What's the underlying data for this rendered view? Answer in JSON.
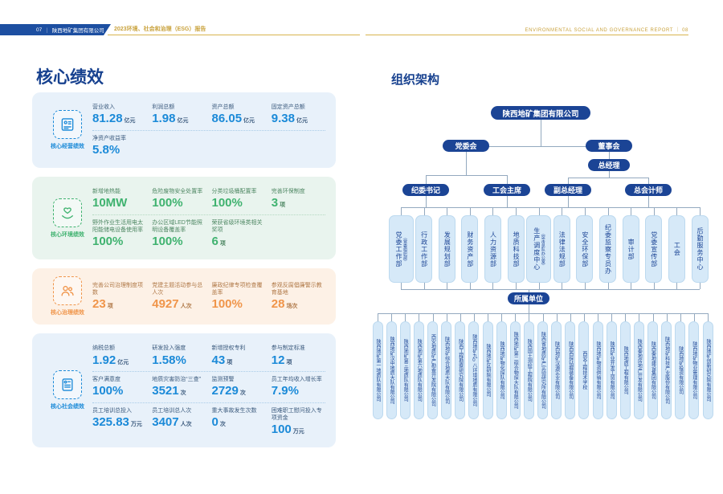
{
  "header": {
    "page_left": "07",
    "divider": "｜",
    "company": "陕西地矿集团有限公司",
    "report_title_cn": "2023环境、社会和治理（ESG）报告",
    "report_title_en": "ENVIRONMENTAL SOCIAL AND GOVERNANCE REPORT",
    "page_right": "08",
    "bar_color": "#1d4fa1",
    "gold_color": "#c9a23c"
  },
  "kpi": {
    "title": "核心绩效",
    "cards": [
      {
        "name": "core-business",
        "label": "核心经营绩效",
        "icon": "id-card-icon",
        "theme": {
          "bg": "#e8f1fa",
          "accent": "#1b8ad8",
          "label": "#3c5b7e",
          "divider": "#a9cce8"
        },
        "rows": [
          [
            {
              "label": "营业收入",
              "value": "81.28",
              "unit": "亿元"
            },
            {
              "label": "利润总额",
              "value": "1.98",
              "unit": "亿元"
            },
            {
              "label": "资产总额",
              "value": "86.05",
              "unit": "亿元"
            },
            {
              "label": "固定资产总额",
              "value": "9.38",
              "unit": "亿元"
            }
          ],
          [
            {
              "label": "净资产收益率",
              "value": "5.8%",
              "unit": ""
            }
          ]
        ]
      },
      {
        "name": "core-environment",
        "label": "核心环境绩效",
        "icon": "hand-holding-heart-icon",
        "theme": {
          "bg": "#e9f4ee",
          "accent": "#3fb26f",
          "label": "#4e8763",
          "divider": "#b4d9c2"
        },
        "rows": [
          [
            {
              "label": "新增地热能",
              "value": "10MW",
              "unit": ""
            },
            {
              "label": "危险废物安全处置率",
              "value": "100%",
              "unit": ""
            },
            {
              "label": "分类垃圾桶配置率",
              "value": "100%",
              "unit": ""
            },
            {
              "label": "完善环保制度",
              "value": "3",
              "unit": "项"
            }
          ],
          [
            {
              "label": "野外作业生活用电太阳能储电设备使用率",
              "value": "100%",
              "unit": ""
            },
            {
              "label": "办公区域LED节能照明设备覆盖率",
              "value": "100%",
              "unit": ""
            },
            {
              "label": "荣获省级环境类相关奖项",
              "value": "6",
              "unit": "项"
            }
          ]
        ]
      },
      {
        "name": "core-governance",
        "label": "核心治理绩效",
        "icon": "people-icon",
        "theme": {
          "bg": "#fdf1e6",
          "accent": "#f0954a",
          "label": "#b07948",
          "divider": "#f0d3b6"
        },
        "rows": [
          [
            {
              "label": "完善公司治理制度项数",
              "value": "23",
              "unit": "项"
            },
            {
              "label": "党建主题活动参与总人次",
              "value": "4927",
              "unit": "人次"
            },
            {
              "label": "廉政纪律专项检查覆盖率",
              "value": "100%",
              "unit": ""
            },
            {
              "label": "参观反腐倡廉警示教育基地",
              "value": "28",
              "unit": "场次"
            }
          ]
        ]
      },
      {
        "name": "core-social",
        "label": "核心社会绩效",
        "icon": "document-icon",
        "theme": {
          "bg": "#e8f1fa",
          "accent": "#1b8ad8",
          "label": "#3c5b7e",
          "divider": "#a9cce8"
        },
        "rows": [
          [
            {
              "label": "纳税总额",
              "value": "1.92",
              "unit": "亿元"
            },
            {
              "label": "研发投入强度",
              "value": "1.58%",
              "unit": ""
            },
            {
              "label": "新增授权专利",
              "value": "43",
              "unit": "项"
            },
            {
              "label": "参与制定标准",
              "value": "12",
              "unit": "项"
            }
          ],
          [
            {
              "label": "客户满意度",
              "value": "100%",
              "unit": ""
            },
            {
              "label": "地质灾害防治“三查”",
              "value": "3521",
              "unit": "次"
            },
            {
              "label": "监测预警",
              "value": "2729",
              "unit": "次"
            },
            {
              "label": "员工年均收入增长率",
              "value": "7.9%",
              "unit": ""
            }
          ],
          [
            {
              "label": "员工培训总投入",
              "value": "325.83",
              "unit": "万元"
            },
            {
              "label": "员工培训总人次",
              "value": "3407",
              "unit": "人次"
            },
            {
              "label": "重大事故发生次数",
              "value": "0",
              "unit": "次"
            },
            {
              "label": "困难职工慰问投入专项资金",
              "value": "100",
              "unit": "万元"
            }
          ]
        ]
      }
    ]
  },
  "org": {
    "title": "组织架构",
    "root": "陕西地矿集团有限公司",
    "party_committee": "党委会",
    "board": "董事会",
    "general_manager": "总经理",
    "party_leaders": [
      "纪委书记",
      "工会主席"
    ],
    "gm_leaders": [
      "副总经理",
      "总会计师"
    ],
    "departments": [
      {
        "name": "党委工作部",
        "note": "（党委组织部）"
      },
      {
        "name": "行政工作部",
        "note": ""
      },
      {
        "name": "发展规划部",
        "note": ""
      },
      {
        "name": "财务资产部",
        "note": ""
      },
      {
        "name": "人力资源部",
        "note": ""
      },
      {
        "name": "地质科技部",
        "note": ""
      },
      {
        "name": "生产调度中心",
        "note": "（突击总队办公室）"
      },
      {
        "name": "法律法规部",
        "note": ""
      },
      {
        "name": "安全环保部",
        "note": ""
      },
      {
        "name": "纪委监察专员办",
        "note": ""
      },
      {
        "name": "审计部",
        "note": ""
      },
      {
        "name": "党委宣传部",
        "note": ""
      },
      {
        "name": "工会",
        "note": ""
      },
      {
        "name": "后勤服务中心",
        "note": ""
      }
    ],
    "affiliated_label": "所属单位",
    "subsidiaries": [
      "陕西地矿第一地质队有限公司",
      "陕西地矿汉中地质大队有限公司",
      "陕西地矿第三地质队有限公司",
      "陕西地矿第六地质队有限公司",
      "西安地质矿产勘查开发院有限公司",
      "陕西地矿综合地质大队有限公司",
      "陕西工程勘察研究院有限公司",
      "陕西地矿九0八环境地质有限公司",
      "陕西地矿区研院有限公司",
      "陕西地矿物化探队有限公司",
      "陕西地矿第二综合物探大队有限公司",
      "陕西国土测绘工程院有限公司",
      "陕西省地质矿产实验研究所有限公司",
      "陕西地矿汉源实业有限公司",
      "陕西西探钻掘装备有限公司",
      "西安工程技术学校",
      "陕西地矿物资供销有限公司",
      "陕西矿业开发工贸有限公司",
      "陕西地质工程有限公司",
      "陕西秦地房地产开发有限公司",
      "陕西秦地建设集团有限公司",
      "陕西地矿科技产业股份有限公司",
      "陕西地矿投资有限公司",
      "陕西地矿物业管理有限公司",
      "陕西地矿创新研究院有限公司"
    ],
    "line_color": "#93a9bf",
    "pill_color": "#1b4495",
    "box_color": "#d6e9f8"
  }
}
